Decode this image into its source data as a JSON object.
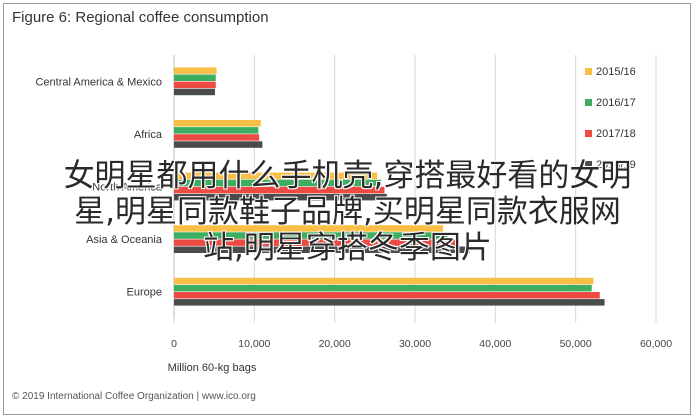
{
  "title": "Figure 6: Regional coffee consumption",
  "footer": "© 2019 International Coffee Organization | www.ico.org",
  "overlay_text": [
    "女明星都用什么手机壳,穿搭最好看的女明",
    "星,明星同款鞋子品牌,买明星同款衣服网",
    "站,明星穿搭冬季图片"
  ],
  "chart_data": {
    "type": "bar",
    "orientation": "horizontal",
    "title": "Figure 6: Regional coffee consumption",
    "xlabel": "Million 60-kg bags",
    "ylabel": "",
    "xlim": [
      0,
      60000
    ],
    "xticks": [
      0,
      10000,
      20000,
      30000,
      40000,
      50000,
      60000
    ],
    "xtick_labels": [
      "0",
      "10,000",
      "20,000",
      "30,000",
      "40,000",
      "50,000",
      "60,000"
    ],
    "grid": true,
    "legend_position": "right",
    "categories": [
      "Central America & Mexico",
      "Africa",
      "North America",
      "Asia & Oceania",
      "Europe"
    ],
    "series": [
      {
        "name": "2015/16",
        "color": "#F9BE45",
        "values": [
          5300,
          10800,
          25300,
          33500,
          52200
        ]
      },
      {
        "name": "2016/17",
        "color": "#3DAE60",
        "values": [
          5200,
          10500,
          25800,
          34000,
          52000
        ]
      },
      {
        "name": "2017/18",
        "color": "#EE4A44",
        "values": [
          5200,
          10600,
          26200,
          35500,
          53000
        ]
      },
      {
        "name": "2018/19",
        "color": "#4B4B4B",
        "values": [
          5100,
          11000,
          26500,
          36800,
          53600
        ]
      }
    ]
  }
}
